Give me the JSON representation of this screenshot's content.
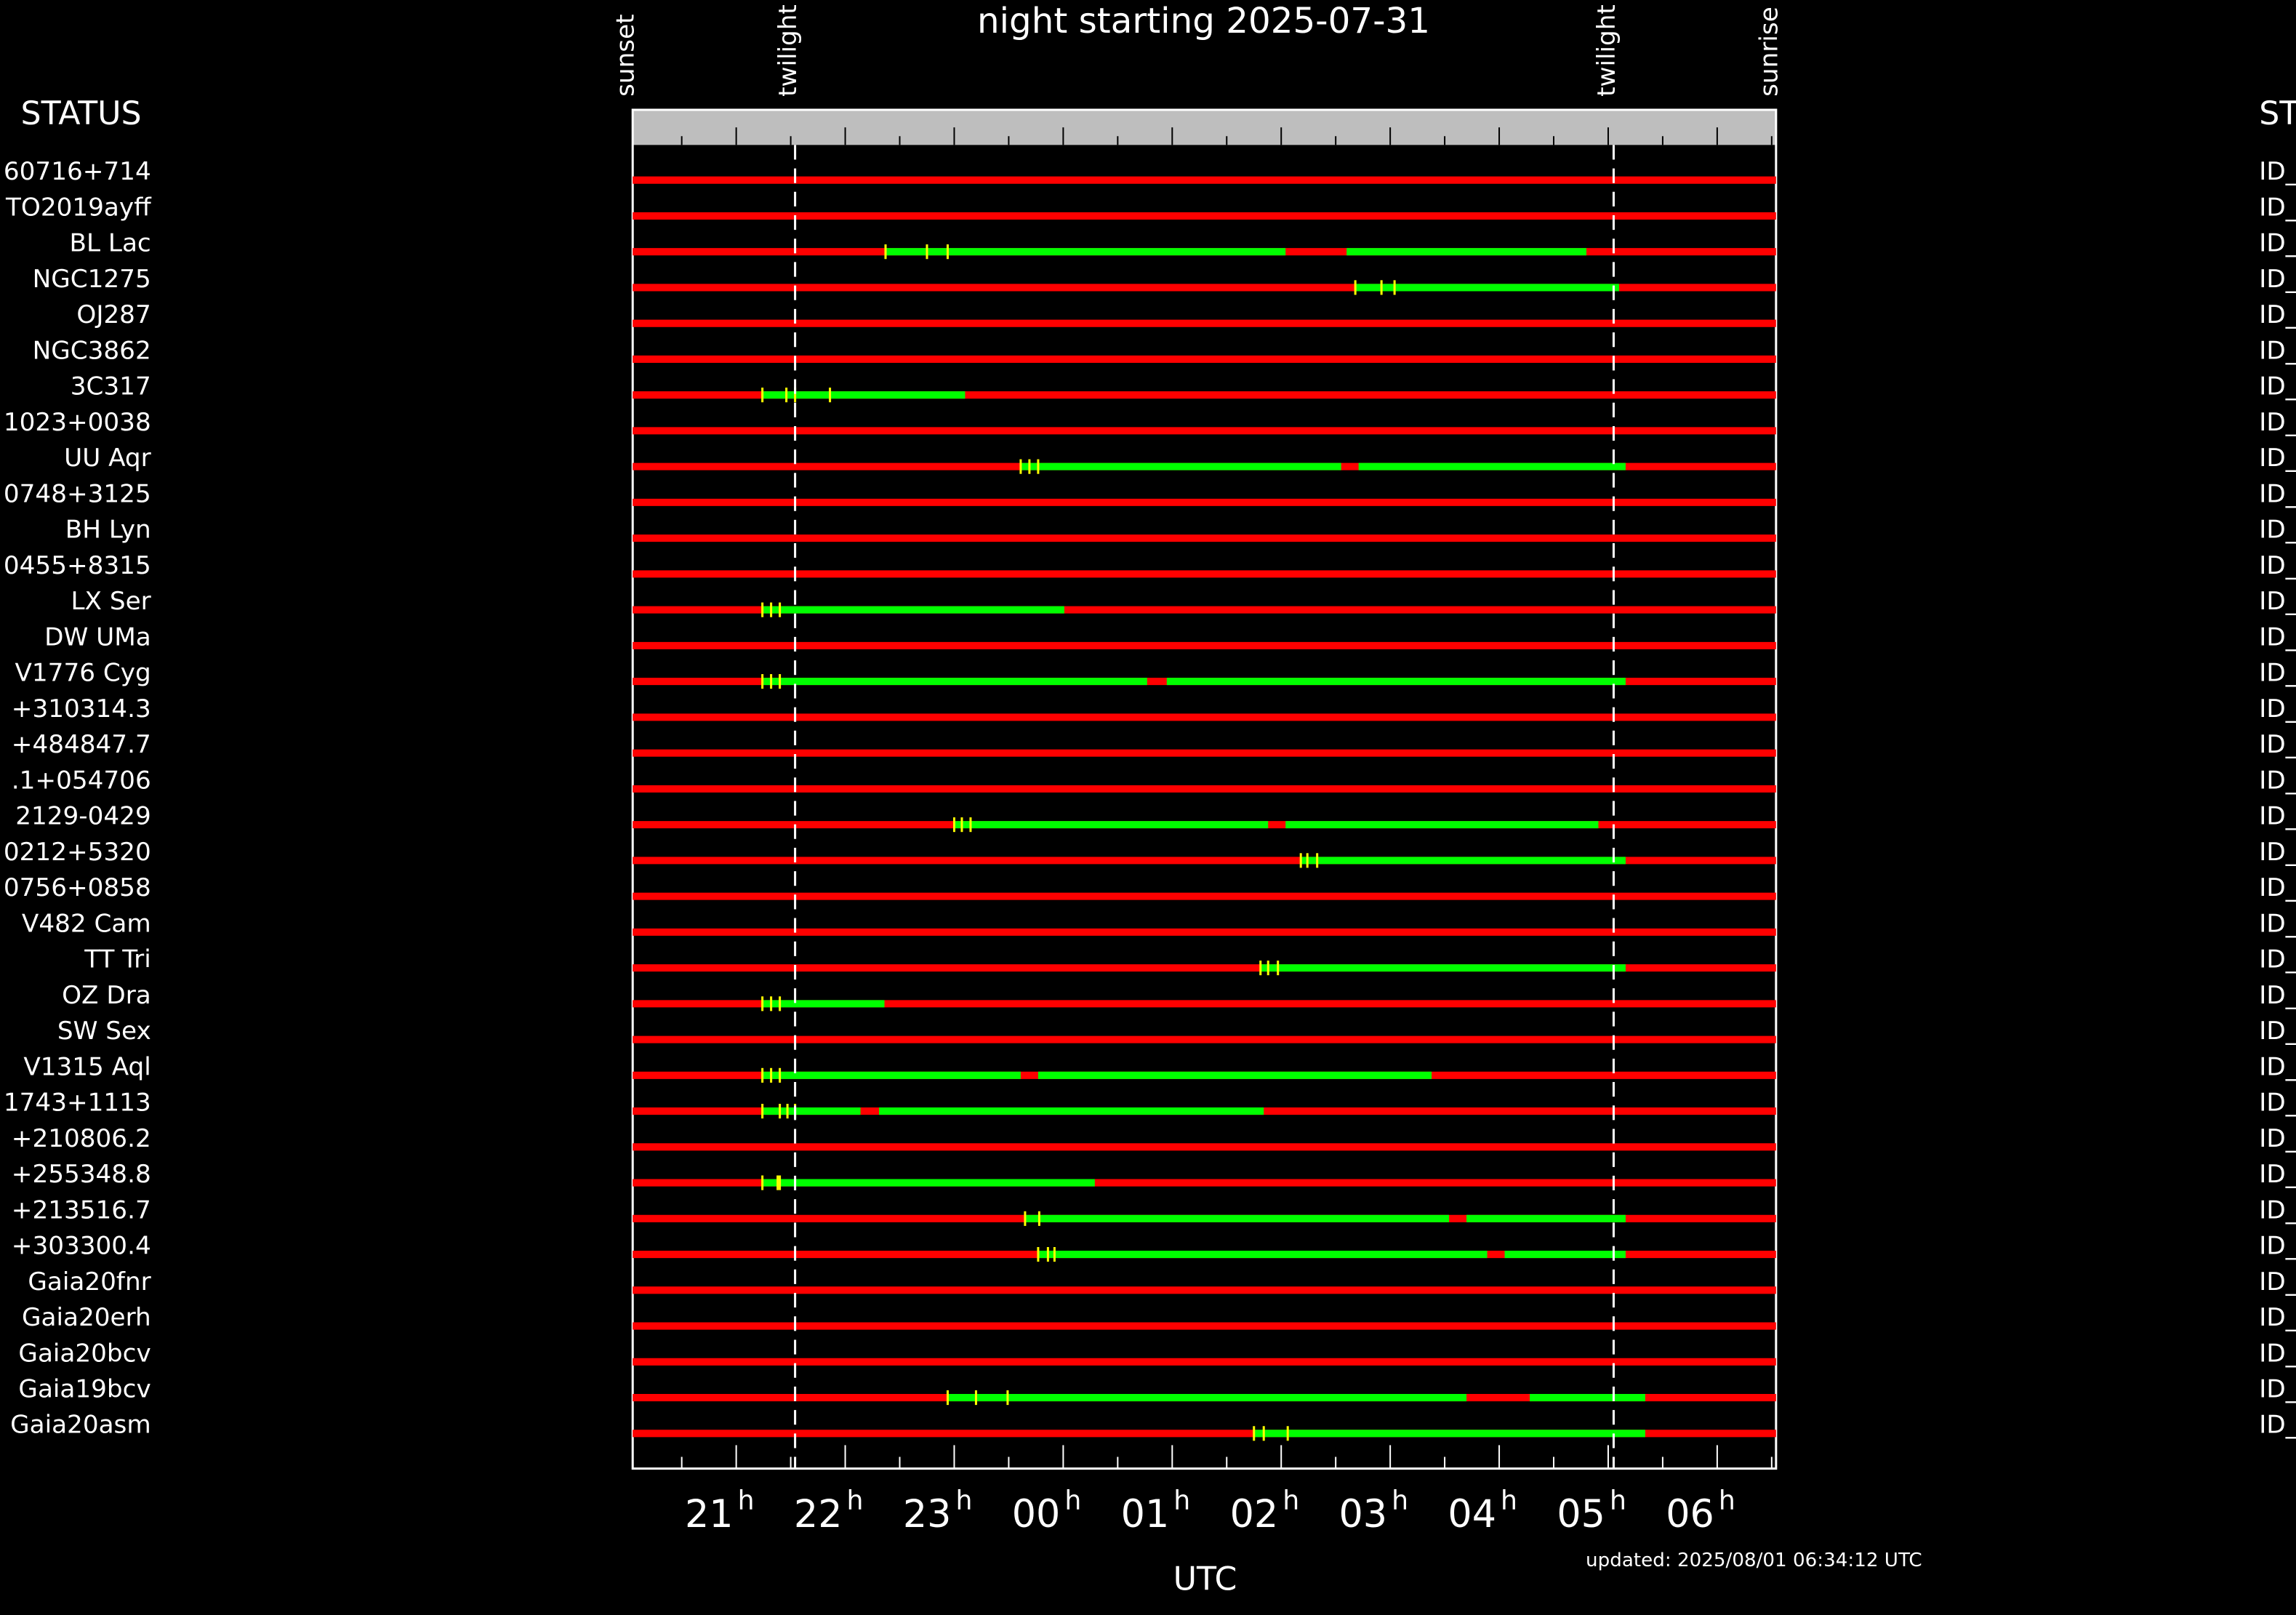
{
  "chart_data": {
    "type": "timeline",
    "title": "night starting 2025-07-31",
    "xlabel": "UTC",
    "left_header": "STATUS",
    "right_header": "ST",
    "updated": "updated: 2025/08/01 06:34:12 UTC",
    "xlim": [
      20.05,
      30.54
    ],
    "xticks": [
      21,
      22,
      23,
      {
        "value": 24,
        "label": "00"
      },
      {
        "value": 25,
        "label": "01"
      },
      {
        "value": 26,
        "label": "02"
      },
      {
        "value": 27,
        "label": "03"
      },
      {
        "value": 28,
        "label": "04"
      },
      {
        "value": 29,
        "label": "05"
      },
      {
        "value": 30,
        "label": "06"
      }
    ],
    "tick_unit": "h",
    "xticks_minor": [
      20.5,
      21.5,
      22.5,
      23.5,
      24.5,
      25.5,
      26.5,
      27.5,
      28.5,
      29.5,
      30.5
    ],
    "events": [
      {
        "name": "sunset",
        "x": 20.05
      },
      {
        "name": "twilight",
        "x": 21.54
      },
      {
        "name": "twilight",
        "x": 29.05
      },
      {
        "name": "sunrise",
        "x": 30.54
      }
    ],
    "colors": {
      "unavailable": "#ff0000",
      "visible": "#00ff00",
      "marker": "#ffff00",
      "header_bar": "#bebebe"
    },
    "rows": [
      {
        "label": "60716+714",
        "status": "ID_",
        "visible": [],
        "markers": []
      },
      {
        "label": "TO2019ayff",
        "status": "ID_",
        "visible": [],
        "markers": []
      },
      {
        "label": "BL Lac",
        "status": "ID_",
        "visible": [
          [
            22.37,
            26.04
          ],
          [
            26.6,
            28.8
          ]
        ],
        "markers": [
          22.37,
          22.75,
          22.94
        ]
      },
      {
        "label": "NGC1275",
        "status": "ID_",
        "visible": [
          [
            26.68,
            29.1
          ]
        ],
        "markers": [
          26.68,
          26.92,
          27.04
        ]
      },
      {
        "label": "OJ287",
        "status": "ID_",
        "visible": [],
        "markers": []
      },
      {
        "label": "NGC3862",
        "status": "ID_",
        "visible": [],
        "markers": []
      },
      {
        "label": "3C317",
        "status": "ID_",
        "visible": [
          [
            21.24,
            23.1
          ]
        ],
        "markers": [
          21.24,
          21.46,
          21.54,
          21.86
        ]
      },
      {
        "label": "1023+0038",
        "status": "ID_",
        "visible": [],
        "markers": []
      },
      {
        "label": "UU Aqr",
        "status": "ID_",
        "visible": [
          [
            23.61,
            26.55
          ],
          [
            26.71,
            29.16
          ]
        ],
        "markers": [
          23.61,
          23.69,
          23.77
        ]
      },
      {
        "label": "0748+3125",
        "status": "ID_",
        "visible": [],
        "markers": []
      },
      {
        "label": "BH Lyn",
        "status": "ID_",
        "visible": [],
        "markers": []
      },
      {
        "label": "0455+8315",
        "status": "ID_",
        "visible": [],
        "markers": []
      },
      {
        "label": "LX Ser",
        "status": "ID_",
        "visible": [
          [
            21.24,
            24.01
          ]
        ],
        "markers": [
          21.24,
          21.32,
          21.4
        ]
      },
      {
        "label": "DW UMa",
        "status": "ID_",
        "visible": [],
        "markers": []
      },
      {
        "label": "V1776 Cyg",
        "status": "ID_",
        "visible": [
          [
            21.24,
            24.77
          ],
          [
            24.95,
            29.16
          ]
        ],
        "markers": [
          21.24,
          21.32,
          21.4
        ]
      },
      {
        "label": "+310314.3",
        "status": "ID_",
        "visible": [],
        "markers": []
      },
      {
        "label": "+484847.7",
        "status": "ID_",
        "visible": [],
        "markers": []
      },
      {
        "label": ".1+054706",
        "status": "ID_",
        "visible": [],
        "markers": []
      },
      {
        "label": "2129-0429",
        "status": "ID_",
        "visible": [
          [
            23.0,
            25.88
          ],
          [
            26.04,
            28.91
          ]
        ],
        "markers": [
          23.0,
          23.07,
          23.15
        ]
      },
      {
        "label": "0212+5320",
        "status": "ID_",
        "visible": [
          [
            26.18,
            29.16
          ]
        ],
        "markers": [
          26.18,
          26.24,
          26.33
        ]
      },
      {
        "label": "0756+0858",
        "status": "ID_",
        "visible": [],
        "markers": []
      },
      {
        "label": "V482 Cam",
        "status": "ID_",
        "visible": [],
        "markers": []
      },
      {
        "label": "TT Tri",
        "status": "ID_",
        "visible": [
          [
            25.81,
            29.16
          ]
        ],
        "markers": [
          25.81,
          25.88,
          25.97
        ]
      },
      {
        "label": "OZ Dra",
        "status": "ID_",
        "visible": [
          [
            21.24,
            22.36
          ]
        ],
        "markers": [
          21.24,
          21.32,
          21.4
        ]
      },
      {
        "label": "SW Sex",
        "status": "ID_",
        "visible": [],
        "markers": []
      },
      {
        "label": "V1315 Aql",
        "status": "ID_",
        "visible": [
          [
            21.24,
            23.61
          ],
          [
            23.77,
            27.38
          ]
        ],
        "markers": [
          21.24,
          21.32,
          21.4
        ]
      },
      {
        "label": "1743+1113",
        "status": "ID_",
        "visible": [
          [
            21.24,
            22.14
          ],
          [
            22.31,
            25.84
          ]
        ],
        "markers": [
          21.24,
          21.4,
          21.47,
          21.54
        ]
      },
      {
        "label": "+210806.2",
        "status": "ID_",
        "visible": [],
        "markers": []
      },
      {
        "label": "+255348.8",
        "status": "ID_",
        "visible": [
          [
            21.24,
            24.29
          ]
        ],
        "markers": [
          21.24,
          21.38,
          21.4
        ]
      },
      {
        "label": "+213516.7",
        "status": "ID_",
        "visible": [
          [
            23.65,
            27.54
          ],
          [
            27.7,
            29.16
          ]
        ],
        "markers": [
          23.65,
          23.78
        ]
      },
      {
        "label": "+303300.4",
        "status": "ID_",
        "visible": [
          [
            23.77,
            27.89
          ],
          [
            28.05,
            29.16
          ]
        ],
        "markers": [
          23.77,
          23.86,
          23.92
        ]
      },
      {
        "label": "Gaia20fnr",
        "status": "ID_",
        "visible": [],
        "markers": []
      },
      {
        "label": "Gaia20erh",
        "status": "ID_",
        "visible": [],
        "markers": []
      },
      {
        "label": "Gaia20bcv",
        "status": "ID_",
        "visible": [],
        "markers": []
      },
      {
        "label": "Gaia19bcv",
        "status": "ID_",
        "visible": [
          [
            22.94,
            27.7
          ],
          [
            28.28,
            29.34
          ]
        ],
        "markers": [
          22.94,
          23.2,
          23.49
        ]
      },
      {
        "label": "Gaia20asm",
        "status": "ID_",
        "visible": [
          [
            25.75,
            29.34
          ]
        ],
        "markers": [
          25.75,
          25.84,
          26.06
        ]
      }
    ]
  }
}
